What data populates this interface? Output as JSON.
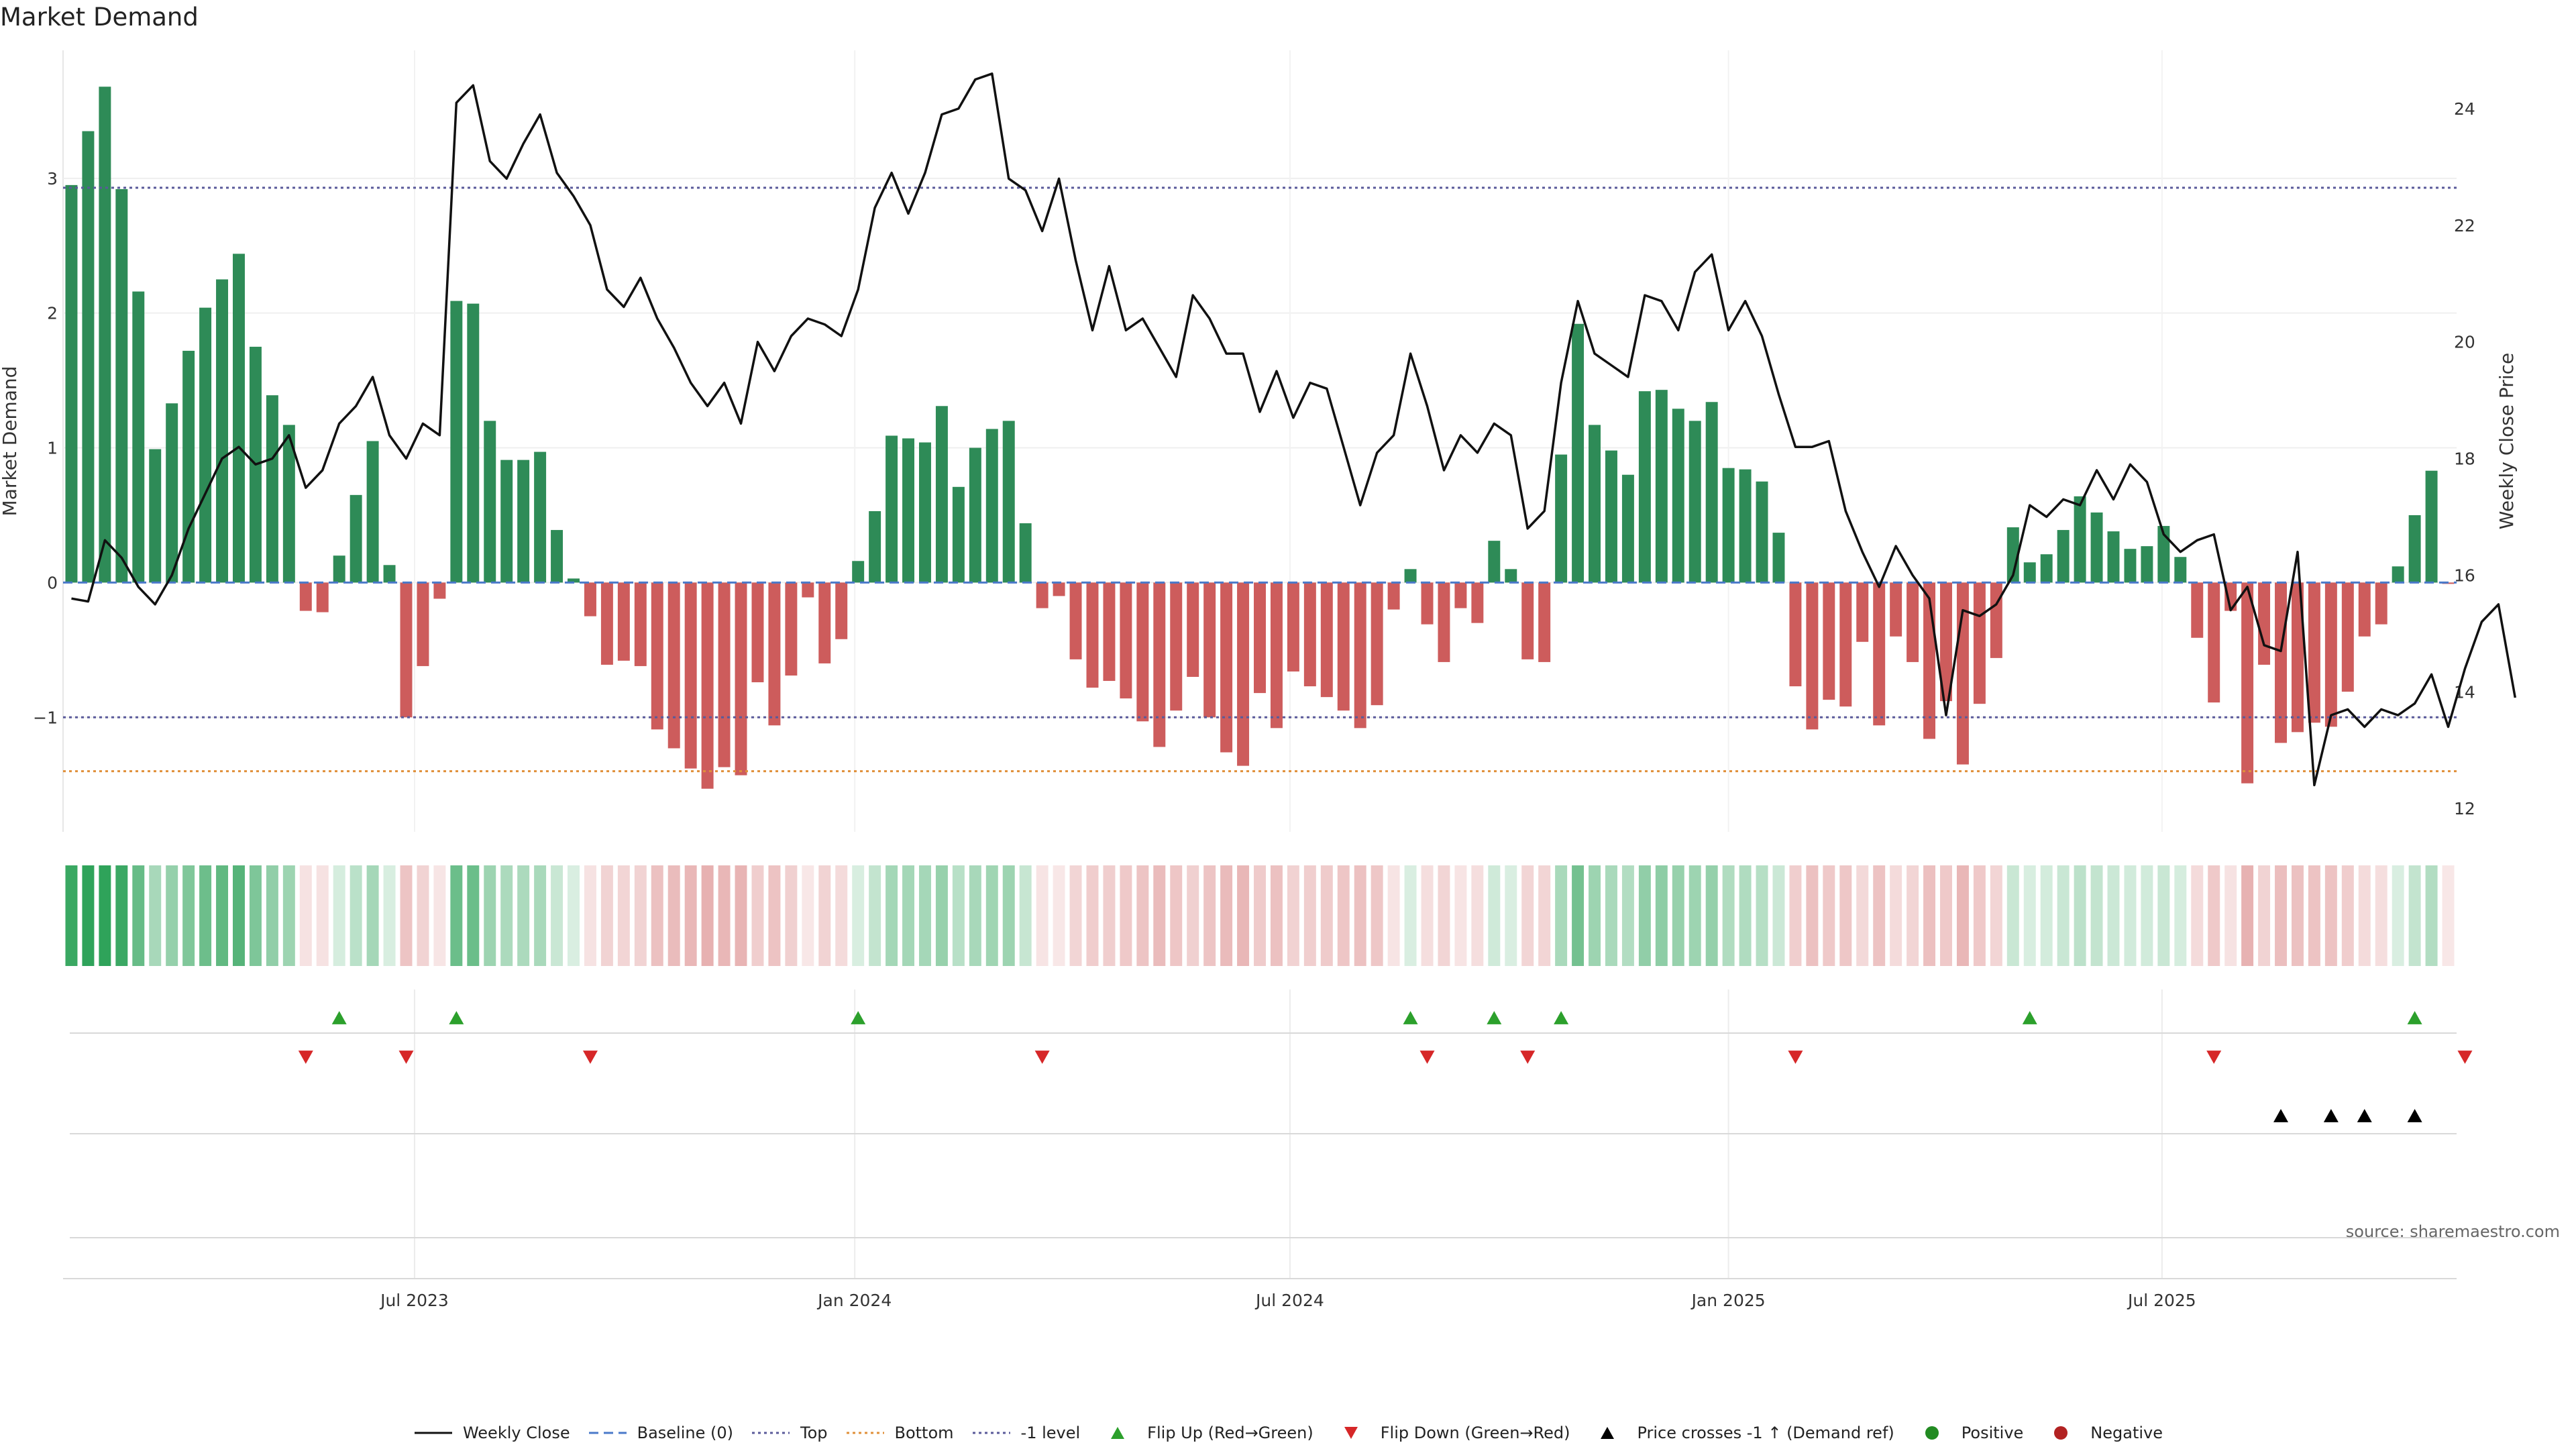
{
  "chart_data": {
    "type": "bar",
    "title": "Market Demand",
    "ylabel": "Market Demand",
    "y2label": "Weekly Close Price",
    "ylim": [
      -1.85,
      3.95
    ],
    "y2lim": [
      11.6,
      25
    ],
    "yticks": [
      "3",
      "2",
      "1",
      "0",
      "−1"
    ],
    "yticks_values": [
      3,
      2,
      1,
      0,
      -1
    ],
    "y2ticks": [
      "24",
      "22",
      "20",
      "18",
      "16",
      "14",
      "12"
    ],
    "y2ticks_values": [
      24,
      22,
      20,
      18,
      16,
      14,
      12
    ],
    "xticks": [
      "Jul 2023",
      "Jan 2024",
      "Jul 2024",
      "Jan 2025",
      "Jul 2025"
    ],
    "xticks_weeks": [
      20.5,
      46.8,
      72.8,
      99.0,
      124.9
    ],
    "grid": true,
    "legend_position": "bottom-center",
    "reference_lines": {
      "top": 2.93,
      "baseline": 0,
      "bottom": -1.4,
      "minus_one": -1
    },
    "demand": [
      2.95,
      3.35,
      3.68,
      2.92,
      2.16,
      0.99,
      1.33,
      1.72,
      2.04,
      2.25,
      2.44,
      1.75,
      1.39,
      1.17,
      -0.21,
      -0.22,
      0.2,
      0.65,
      1.05,
      0.13,
      -1.0,
      -0.62,
      -0.12,
      2.09,
      2.07,
      1.2,
      0.91,
      0.91,
      0.97,
      0.39,
      0.03,
      -0.25,
      -0.61,
      -0.58,
      -0.62,
      -1.09,
      -1.23,
      -1.38,
      -1.53,
      -1.37,
      -1.43,
      -0.74,
      -1.06,
      -0.69,
      -0.11,
      -0.6,
      -0.42,
      0.16,
      0.53,
      1.09,
      1.07,
      1.04,
      1.31,
      0.71,
      1.0,
      1.14,
      1.2,
      0.44,
      -0.19,
      -0.1,
      -0.57,
      -0.78,
      -0.73,
      -0.86,
      -1.03,
      -1.22,
      -0.95,
      -0.7,
      -1.0,
      -1.26,
      -1.36,
      -0.82,
      -1.08,
      -0.66,
      -0.77,
      -0.85,
      -0.95,
      -1.08,
      -0.91,
      -0.2,
      0.1,
      -0.31,
      -0.59,
      -0.19,
      -0.3,
      0.31,
      0.1,
      -0.57,
      -0.59,
      0.95,
      1.92,
      1.17,
      0.98,
      0.8,
      1.42,
      1.43,
      1.29,
      1.2,
      1.34,
      0.85,
      0.84,
      0.75,
      0.37,
      -0.77,
      -1.09,
      -0.87,
      -0.92,
      -0.44,
      -1.06,
      -0.4,
      -0.59,
      -1.16,
      -0.88,
      -1.35,
      -0.9,
      -0.56,
      0.41,
      0.15,
      0.21,
      0.39,
      0.64,
      0.52,
      0.38,
      0.25,
      0.27,
      0.42,
      0.19,
      -0.41,
      -0.89,
      -0.21,
      -1.49,
      -0.61,
      -1.19,
      -1.11,
      -1.04,
      -1.07,
      -0.81,
      -0.4,
      -0.31,
      0.12,
      0.5,
      0.83,
      -0.01
    ],
    "weekly_close": [
      15.6,
      15.55,
      16.6,
      16.3,
      15.8,
      15.5,
      16.0,
      16.8,
      17.4,
      18.0,
      18.2,
      17.9,
      18.0,
      18.4,
      17.5,
      17.8,
      18.6,
      18.9,
      19.4,
      18.4,
      18.0,
      18.6,
      18.4,
      24.1,
      24.4,
      23.1,
      22.8,
      23.4,
      23.9,
      22.9,
      22.5,
      22.0,
      20.9,
      20.6,
      21.1,
      20.4,
      19.9,
      19.3,
      18.9,
      19.3,
      18.6,
      20.0,
      19.5,
      20.1,
      20.4,
      20.3,
      20.1,
      20.9,
      22.3,
      22.9,
      22.2,
      22.9,
      23.9,
      24.0,
      24.5,
      24.6,
      22.8,
      22.6,
      21.9,
      22.8,
      21.4,
      20.2,
      21.3,
      20.2,
      20.4,
      19.9,
      19.4,
      20.8,
      20.4,
      19.8,
      19.8,
      18.8,
      19.5,
      18.7,
      19.3,
      19.2,
      18.2,
      17.2,
      18.1,
      18.4,
      19.8,
      18.9,
      17.8,
      18.4,
      18.1,
      18.6,
      18.4,
      16.8,
      17.1,
      19.3,
      20.7,
      19.8,
      19.6,
      19.4,
      20.8,
      20.7,
      20.2,
      21.2,
      21.5,
      20.2,
      20.7,
      20.1,
      19.1,
      18.2,
      18.2,
      18.3,
      17.1,
      16.4,
      15.8,
      16.5,
      16.0,
      15.6,
      13.6,
      15.4,
      15.3,
      15.5,
      16.0,
      17.2,
      17.0,
      17.3,
      17.2,
      17.8,
      17.3,
      17.9,
      17.6,
      16.7,
      16.4,
      16.6,
      16.7,
      15.4,
      15.8,
      14.8,
      14.7,
      16.4,
      12.4,
      13.6,
      13.7,
      13.4,
      13.7,
      13.6,
      13.8,
      14.3,
      13.4,
      14.4,
      15.2,
      15.5,
      13.9
    ],
    "flip_up_weeks": [
      16,
      23,
      47,
      80,
      85,
      89,
      117,
      140
    ],
    "flip_down_weeks": [
      14,
      20,
      31,
      58,
      81,
      87,
      103,
      128,
      143
    ],
    "price_cross_weeks": [
      132,
      135,
      137,
      140
    ]
  },
  "colors": {
    "positive": "#2e8b57",
    "negative": "#cd5c5c",
    "line": "#111111",
    "baseline": "#4a79c9",
    "top": "#5a5a9a",
    "bottom": "#e0903a",
    "flip_up": "#2ca02c",
    "flip_down": "#d62728",
    "cross": "#000000",
    "legend_positive": "#228b22",
    "legend_negative": "#b22222"
  },
  "legend": [
    {
      "label": "Weekly Close",
      "symbol": "line-solid"
    },
    {
      "label": "Baseline (0)",
      "symbol": "line-dashed"
    },
    {
      "label": "Top",
      "symbol": "line-dotted-top"
    },
    {
      "label": "Bottom",
      "symbol": "line-dotted-bottom"
    },
    {
      "label": "-1 level",
      "symbol": "line-dotted-minus1"
    },
    {
      "label": "Flip Up (Red→Green)",
      "symbol": "triangle-up-green"
    },
    {
      "label": "Flip Down (Green→Red)",
      "symbol": "triangle-down-red"
    },
    {
      "label": "Price crosses -1 ↑ (Demand ref)",
      "symbol": "triangle-up-black"
    },
    {
      "label": "Positive",
      "symbol": "dot-green"
    },
    {
      "label": "Negative",
      "symbol": "dot-red"
    }
  ],
  "source_text": "source: sharemaestro.com"
}
